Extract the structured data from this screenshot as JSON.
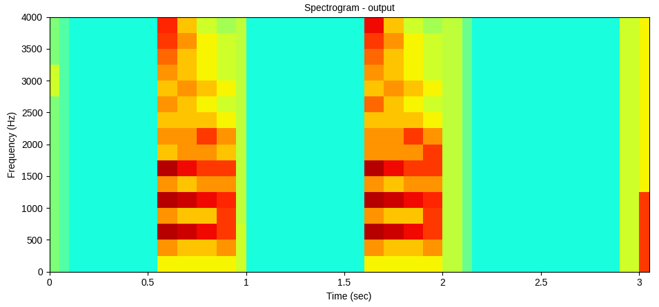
{
  "chart_data": {
    "type": "heatmap",
    "title": "Spectrogram - output",
    "x_label": "Time (sec)",
    "y_label": "Frequency (Hz)",
    "xlim": [
      0,
      3.05
    ],
    "xticks": [
      0,
      0.5,
      1,
      1.5,
      2,
      2.5,
      3
    ],
    "ylim": [
      0,
      4000
    ],
    "yticks": [
      0,
      500,
      1000,
      1500,
      2000,
      2500,
      3000,
      3500,
      4000
    ],
    "color": "jet",
    "color_range": [
      0,
      10
    ],
    "grid": false,
    "time_edges": [
      0,
      0.05,
      0.1,
      0.55,
      0.65,
      0.75,
      0.85,
      0.95,
      1.0,
      1.6,
      1.7,
      1.8,
      1.9,
      2.0,
      2.1,
      2.15,
      2.9,
      3.0,
      3.05
    ],
    "frequency_edges": [
      0,
      250,
      500,
      750,
      1000,
      1250,
      1500,
      1750,
      2000,
      2250,
      2500,
      2750,
      3000,
      3250,
      3500,
      3750,
      4000
    ],
    "cells": [
      [
        5.0,
        4.5,
        3.8,
        6.5,
        6.5,
        6.5,
        6.5,
        6.0,
        3.8,
        6.5,
        6.5,
        6.5,
        6.5,
        5.8,
        4.8,
        3.8,
        6.0,
        8.5
      ],
      [
        5.0,
        4.5,
        3.8,
        7.5,
        7.0,
        7.0,
        7.5,
        6.0,
        3.8,
        7.5,
        7.0,
        7.0,
        7.5,
        5.8,
        4.8,
        3.8,
        6.0,
        8.5
      ],
      [
        5.0,
        4.5,
        3.8,
        9.5,
        9.3,
        9.0,
        8.5,
        6.0,
        3.8,
        9.5,
        9.3,
        9.0,
        8.5,
        5.8,
        4.8,
        3.8,
        6.0,
        8.5
      ],
      [
        5.0,
        4.5,
        3.8,
        7.5,
        7.0,
        7.0,
        8.5,
        5.8,
        3.8,
        7.5,
        7.0,
        7.0,
        8.5,
        5.8,
        4.8,
        3.8,
        6.0,
        8.5
      ],
      [
        5.0,
        4.5,
        3.8,
        9.5,
        9.3,
        9.0,
        8.7,
        5.8,
        3.8,
        9.5,
        9.3,
        9.0,
        8.7,
        5.8,
        4.8,
        3.8,
        6.0,
        8.5
      ],
      [
        5.0,
        4.5,
        3.8,
        7.5,
        7.0,
        7.5,
        7.5,
        5.8,
        3.8,
        7.5,
        7.0,
        7.5,
        7.5,
        5.8,
        4.8,
        3.8,
        6.0,
        6.5
      ],
      [
        5.0,
        4.5,
        3.8,
        9.5,
        9.0,
        8.5,
        8.5,
        5.8,
        3.8,
        9.5,
        9.0,
        8.5,
        8.5,
        5.8,
        4.8,
        3.8,
        6.0,
        6.5
      ],
      [
        5.0,
        4.5,
        3.8,
        7.0,
        7.5,
        7.5,
        7.0,
        5.8,
        3.8,
        7.5,
        7.5,
        7.5,
        8.5,
        5.8,
        4.8,
        3.8,
        6.0,
        6.5
      ],
      [
        5.0,
        4.5,
        3.8,
        7.5,
        7.5,
        8.5,
        7.5,
        5.8,
        3.8,
        7.5,
        7.5,
        8.5,
        7.5,
        5.8,
        4.8,
        3.8,
        6.0,
        6.5
      ],
      [
        5.0,
        4.5,
        3.8,
        7.0,
        7.0,
        7.0,
        6.5,
        5.8,
        3.8,
        7.0,
        7.0,
        7.0,
        6.5,
        5.8,
        4.8,
        3.8,
        6.0,
        6.5
      ],
      [
        5.0,
        4.5,
        3.8,
        7.5,
        7.0,
        6.5,
        6.0,
        5.8,
        3.8,
        8.0,
        7.0,
        6.5,
        6.0,
        5.8,
        4.8,
        3.8,
        6.0,
        6.5
      ],
      [
        6.0,
        4.5,
        3.8,
        7.0,
        7.5,
        7.0,
        6.5,
        5.8,
        3.8,
        7.0,
        7.5,
        7.0,
        6.5,
        5.8,
        4.8,
        3.8,
        6.0,
        6.5
      ],
      [
        6.0,
        4.5,
        3.8,
        7.5,
        7.0,
        6.5,
        6.0,
        5.8,
        3.8,
        7.5,
        7.0,
        6.5,
        6.0,
        5.8,
        4.8,
        3.8,
        6.0,
        6.5
      ],
      [
        5.0,
        4.5,
        3.8,
        8.0,
        7.0,
        6.5,
        6.0,
        5.8,
        3.8,
        8.0,
        7.0,
        6.5,
        6.0,
        5.8,
        4.8,
        3.8,
        6.0,
        6.5
      ],
      [
        5.0,
        4.5,
        3.8,
        8.5,
        7.5,
        6.5,
        6.0,
        5.8,
        3.8,
        8.5,
        7.5,
        6.5,
        6.0,
        5.8,
        4.8,
        3.8,
        6.0,
        6.5
      ],
      [
        5.0,
        4.5,
        3.8,
        8.7,
        7.0,
        6.0,
        5.5,
        5.8,
        3.8,
        9.0,
        7.0,
        6.0,
        5.5,
        5.8,
        4.8,
        3.8,
        6.0,
        6.5
      ]
    ]
  }
}
